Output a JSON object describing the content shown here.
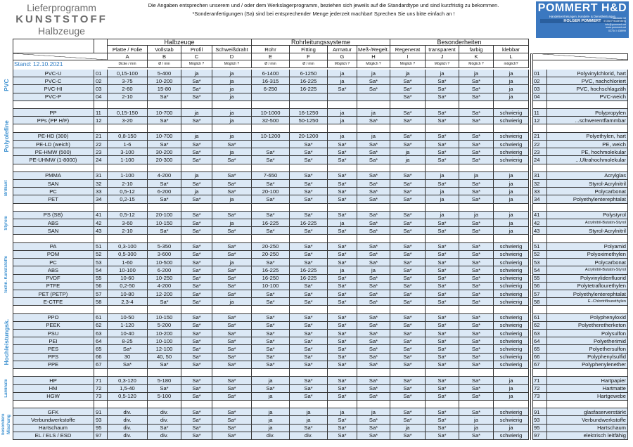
{
  "header": {
    "title_line1": "Lieferprogramm",
    "title_line2": "KUNSTSTOFF",
    "title_line3": "Halbzeuge",
    "note1": "Die Angaben entsprechen unserem und / oder dem Werkslagerprogramm, beziehen sich jeweils auf die Standardtype und sind kurzfristig zu bekommen.",
    "note2": "*Sonderanfertigungen (Sa) sind bei entsprechender Menge jederzeit machbar!  Sprechen Sie uns bitte einfach an !",
    "stand": "Stand: 12.10.2021"
  },
  "logo": {
    "name": "POMMERT H&D",
    "subtitle": "Handelsvertretungen, Handels- & Dienstleistungen",
    "person": "HOLGER POMMERT",
    "address": [
      "Talstraße 18",
      "57258 Freudenberg",
      "info@pommert.net",
      "www.pommert.net",
      "02734 / 438999"
    ]
  },
  "table": {
    "column_groups": [
      {
        "label": "Halbzeuge",
        "columns": [
          {
            "name": "Platte / Folie",
            "letter": "A",
            "unit": "Dicke / mm"
          },
          {
            "name": "Vollstab",
            "letter": "B",
            "unit": "Ø / mm"
          },
          {
            "name": "Profil",
            "letter": "C",
            "unit": "Möglich ?"
          },
          {
            "name": "Schweißdraht",
            "letter": "D",
            "unit": "Möglich ?"
          }
        ]
      },
      {
        "label": "Rohrleitungssysteme",
        "columns": [
          {
            "name": "Rohr",
            "letter": "E",
            "unit": "Ø / mm"
          },
          {
            "name": "Fitting",
            "letter": "F",
            "unit": "Ø / mm"
          },
          {
            "name": "Armatur",
            "letter": "G",
            "unit": "Möglich ?"
          },
          {
            "name": "Meß-/Regelt.",
            "letter": "H",
            "unit": "Möglich ?"
          }
        ]
      },
      {
        "label": "Besonderheiten",
        "columns": [
          {
            "name": "Regenerat",
            "letter": "I",
            "unit": "Möglich ?"
          },
          {
            "name": "transparent",
            "letter": "J",
            "unit": "Möglich ?"
          },
          {
            "name": "farbig",
            "letter": "K",
            "unit": "Möglich ?"
          },
          {
            "name": "klebbar",
            "letter": "L",
            "unit": "möglich?"
          }
        ]
      }
    ],
    "sections": [
      {
        "label": "PVC",
        "blocks": [
          [
            [
              "PVC-U",
              "01",
              "0,15-100",
              "5-400",
              "ja",
              "ja",
              "6-1400",
              "6-1250",
              "ja",
              "ja",
              "ja",
              "ja",
              "ja",
              "ja",
              "01",
              "Polyvinylchlorid, hart"
            ],
            [
              "PVC-C",
              "02",
              "3-75",
              "10-200",
              "Sa*",
              "ja",
              "16-315",
              "16-225",
              "ja",
              "Sa*",
              "Sa*",
              "Sa*",
              "Sa*",
              "ja",
              "02",
              "PVC, nachchloriert"
            ],
            [
              "PVC-HI",
              "03",
              "2-60",
              "15-80",
              "Sa*",
              "ja",
              "6-250",
              "16-225",
              "Sa*",
              "Sa*",
              "Sa*",
              "Sa*",
              "Sa*",
              "ja",
              "03",
              "PVC, hochschlagzäh"
            ],
            [
              "PVC-P",
              "04",
              "2-10",
              "Sa*",
              "Sa*",
              "ja",
              null,
              null,
              null,
              null,
              "Sa*",
              "Sa*",
              "Sa*",
              "ja",
              "04",
              "PVC-weich"
            ]
          ]
        ]
      },
      {
        "label": "Polyolefine",
        "blocks": [
          [
            [
              "PP",
              "11",
              "0,15-150",
              "10-700",
              "ja",
              "ja",
              "10-1000",
              "16-1250",
              "ja",
              "ja",
              "Sa*",
              "Sa*",
              "Sa*",
              "schwierig",
              "11",
              "Polypropylen"
            ],
            [
              "PPs (PP H/F)",
              "12",
              "3-20",
              "Sa*",
              "Sa*",
              "ja",
              "32-500",
              "50-1250",
              "ja",
              "Sa*",
              "Sa*",
              "Sa*",
              "Sa*",
              "schwierig",
              "12",
              "...schwerentflammbar"
            ]
          ],
          [
            [
              "PE-HD (300)",
              "21",
              "0,8-150",
              "10-700",
              "ja",
              "ja",
              "10-1200",
              "20-1200",
              "ja",
              "ja",
              "Sa*",
              "Sa*",
              "Sa*",
              "schwierig",
              "21",
              "Polyethylen, hart"
            ],
            [
              "PE-LD (weich)",
              "22",
              "1-6",
              "Sa*",
              "Sa*",
              "Sa*",
              null,
              "Sa*",
              "Sa*",
              "Sa*",
              "Sa*",
              "Sa*",
              "Sa*",
              "schwierig",
              "22",
              "PE, weich"
            ],
            [
              "PE-HMW (500)",
              "23",
              "3-100",
              "30-200",
              "Sa*",
              "ja",
              "Sa*",
              "Sa*",
              "Sa*",
              "Sa*",
              "ja",
              "Sa*",
              "Sa*",
              "schwierig",
              "23",
              "PE, hochmolekular"
            ],
            [
              "PE-UHMW (1-8000)",
              "24",
              "1-100",
              "20-300",
              "Sa*",
              "Sa*",
              "Sa*",
              "Sa*",
              "Sa*",
              "Sa*",
              "ja",
              "Sa*",
              "Sa*",
              "schwierig",
              "24",
              "...Ultrahochmolekular"
            ]
          ]
        ]
      },
      {
        "label": "Brilliant",
        "blocks": [
          [
            [
              "PMMA",
              "31",
              "1-100",
              "4-200",
              "ja",
              "Sa*",
              "7-650",
              "Sa*",
              "Sa*",
              "Sa*",
              "Sa*",
              "ja",
              "ja",
              "ja",
              "31",
              "Acrylglas"
            ],
            [
              "SAN",
              "32",
              "2-10",
              "Sa*",
              "Sa*",
              "Sa*",
              "Sa*",
              "Sa*",
              "Sa*",
              "Sa*",
              "Sa*",
              "Sa*",
              "Sa*",
              "ja",
              "32",
              "Styrol-Acrylnitril"
            ],
            [
              "PC",
              "33",
              "0,5-12",
              "6-200",
              "ja",
              "Sa*",
              "20-100",
              "Sa*",
              "Sa*",
              "Sa*",
              "Sa*",
              "ja",
              "Sa*",
              "ja",
              "33",
              "Polycarbonat"
            ],
            [
              "PET",
              "34",
              "0,2-15",
              "Sa*",
              "Sa*",
              "ja",
              "Sa*",
              "Sa*",
              "Sa*",
              "Sa*",
              "Sa*",
              "ja",
              "Sa*",
              "ja",
              "34",
              "Polyethylenterephtalat"
            ]
          ]
        ]
      },
      {
        "label": "Styrole",
        "blocks": [
          [
            [
              "PS (SB)",
              "41",
              "0,5-12",
              "20-100",
              "Sa*",
              "Sa*",
              "Sa*",
              "Sa*",
              "Sa*",
              "Sa*",
              "Sa*",
              "ja",
              "ja",
              "ja",
              "41",
              "Polystyrol"
            ],
            [
              "ABS",
              "42",
              "3-60",
              "10-150",
              "Sa*",
              "ja",
              "16-225",
              "16-225",
              "ja",
              "Sa*",
              "Sa*",
              "Sa*",
              "Sa*",
              "ja",
              "42",
              "Acrylnitril-Butatin-Styrol"
            ],
            [
              "SAN",
              "43",
              "2-10",
              "Sa*",
              "Sa*",
              "Sa*",
              "Sa*",
              "Sa*",
              "Sa*",
              "Sa*",
              "Sa*",
              "Sa*",
              "Sa*",
              "ja",
              "43",
              "Styrol-Acrylnitril"
            ]
          ]
        ]
      },
      {
        "label": "techn. Kunststoffe",
        "blocks": [
          [
            [
              "PA",
              "51",
              "0,3-100",
              "5-350",
              "Sa*",
              "Sa*",
              "20-250",
              "Sa*",
              "Sa*",
              "Sa*",
              "Sa*",
              "Sa*",
              "Sa*",
              "schwierig",
              "51",
              "Polyamid"
            ],
            [
              "POM",
              "52",
              "0,5-300",
              "3-600",
              "Sa*",
              "Sa*",
              "20-250",
              "Sa*",
              "Sa*",
              "Sa*",
              "Sa*",
              "Sa*",
              "Sa*",
              "schwierig",
              "52",
              "Polyoximethylen"
            ],
            [
              "PC",
              "53",
              "1-60",
              "10-500",
              "Sa*",
              "ja",
              "Sa*",
              "Sa*",
              "Sa*",
              "Sa*",
              "Sa*",
              "Sa*",
              "Sa*",
              "schwierig",
              "53",
              "Polycarbonat"
            ],
            [
              "ABS",
              "54",
              "10-100",
              "6-200",
              "Sa*",
              "Sa*",
              "16-225",
              "16-225",
              "ja",
              "ja",
              "Sa*",
              "Sa*",
              "Sa*",
              "schwierig",
              "54",
              "Acrylnitril-Butatin-Styrol"
            ],
            [
              "PVDF",
              "55",
              "10-60",
              "10-250",
              "Sa*",
              "Sa*",
              "16-250",
              "16-225",
              "Sa*",
              "Sa*",
              "Sa*",
              "Sa*",
              "Sa*",
              "schwierig",
              "55",
              "Polyvinylidenfluorid"
            ],
            [
              "PTFE",
              "56",
              "0,2-50",
              "4-200",
              "Sa*",
              "Sa*",
              "10-100",
              "Sa*",
              "Sa*",
              "Sa*",
              "Sa*",
              "Sa*",
              "Sa*",
              "schwierig",
              "56",
              "Polytetraflourethylen"
            ],
            [
              "PET (PETP)",
              "57",
              "10-80",
              "12-200",
              "Sa*",
              "Sa*",
              "Sa*",
              "Sa*",
              "Sa*",
              "Sa*",
              "Sa*",
              "Sa*",
              "Sa*",
              "schwierig",
              "57",
              "Polyethylenterephtalat"
            ],
            [
              "E-CTFE",
              "58",
              "2,3-4",
              "Sa*",
              "Sa*",
              "ja",
              "Sa*",
              "Sa*",
              "Sa*",
              "Sa*",
              "Sa*",
              "Sa*",
              "Sa*",
              "schwierig",
              "58",
              "E.-Chlortriflourethylen"
            ]
          ]
        ]
      },
      {
        "label": "Hochleistungsk.",
        "blocks": [
          [
            [
              "PPO",
              "61",
              "10-50",
              "10-150",
              "Sa*",
              "Sa*",
              "Sa*",
              "Sa*",
              "Sa*",
              "Sa*",
              "Sa*",
              "Sa*",
              "Sa*",
              "schwierig",
              "61",
              "Polyphenyloxid"
            ],
            [
              "PEEK",
              "62",
              "1-120",
              "5-200",
              "Sa*",
              "Sa*",
              "Sa*",
              "Sa*",
              "Sa*",
              "Sa*",
              "Sa*",
              "Sa*",
              "Sa*",
              "schwierig",
              "62",
              "Polyetheretherketon"
            ],
            [
              "PSU",
              "63",
              "10-40",
              "10-200",
              "Sa*",
              "Sa*",
              "Sa*",
              "Sa*",
              "Sa*",
              "Sa*",
              "Sa*",
              "Sa*",
              "Sa*",
              "schwierig",
              "63",
              "Polysulfon"
            ],
            [
              "PEI",
              "64",
              "8-25",
              "10-100",
              "Sa*",
              "Sa*",
              "Sa*",
              "Sa*",
              "Sa*",
              "Sa*",
              "Sa*",
              "Sa*",
              "Sa*",
              "schwierig",
              "64",
              "Polyetherimid"
            ],
            [
              "PES",
              "65",
              "Sa*",
              "12-100",
              "Sa*",
              "Sa*",
              "Sa*",
              "Sa*",
              "Sa*",
              "Sa*",
              "Sa*",
              "Sa*",
              "Sa*",
              "schwierig",
              "65",
              "Polyethersulfon"
            ],
            [
              "PPS",
              "66",
              "30",
              "40, 50",
              "Sa*",
              "Sa*",
              "Sa*",
              "Sa*",
              "Sa*",
              "Sa*",
              "Sa*",
              "Sa*",
              "Sa*",
              "schwierig",
              "66",
              "Polyphenylsulfid"
            ],
            [
              "PPE",
              "67",
              "Sa*",
              "Sa*",
              "Sa*",
              "Sa*",
              "Sa*",
              "Sa*",
              "Sa*",
              "Sa*",
              "Sa*",
              "Sa*",
              "Sa*",
              "schwierig",
              "67",
              "Polyphenylenether"
            ]
          ]
        ]
      },
      {
        "label": "Laminate",
        "blocks": [
          [
            [
              "HP",
              "71",
              "0,3-120",
              "5-180",
              "Sa*",
              "Sa*",
              "ja",
              "Sa*",
              "Sa*",
              "Sa*",
              "Sa*",
              "Sa*",
              "Sa*",
              "ja",
              "71",
              "Hartpapier"
            ],
            [
              "HM",
              "72",
              "1,5-40",
              "Sa*",
              "Sa*",
              "Sa*",
              "Sa*",
              "Sa*",
              "Sa*",
              "Sa*",
              "Sa*",
              "Sa*",
              "Sa*",
              "ja",
              "72",
              "Hartmatte"
            ],
            [
              "HGW",
              "73",
              "0,5-120",
              "5-100",
              "Sa*",
              "Sa*",
              "ja",
              "Sa*",
              "Sa*",
              "Sa*",
              "Sa*",
              "Sa*",
              "Sa*",
              "ja",
              "73",
              "Hartgewebe"
            ]
          ]
        ]
      },
      {
        "label": "besondere Mischung",
        "blocks": [
          [
            [
              "GFK",
              "91",
              "div.",
              "div.",
              "Sa*",
              "Sa*",
              "ja",
              "ja",
              "ja",
              "ja",
              "Sa*",
              "Sa*",
              "Sa*",
              "schwierig",
              "91",
              "glasfaserverstärkt"
            ],
            [
              "Verbundwerkstoffe",
              "93",
              "div.",
              "div.",
              "Sa*",
              "Sa*",
              "ja",
              "ja",
              "Sa*",
              "Sa*",
              "Sa*",
              "Sa*",
              "ja",
              "schwierig",
              "93",
              "Verbundwerkstoffe"
            ],
            [
              "Hartschaum",
              "95",
              "div.",
              "Sa*",
              "Sa*",
              "Sa*",
              "ja",
              "Sa*",
              "Sa*",
              "Sa*",
              "ja",
              "Sa*",
              "ja",
              "ja",
              "95",
              "Hartschaum"
            ],
            [
              "EL / ELS / ESD",
              "97",
              "div.",
              "div.",
              "Sa*",
              "Sa*",
              "div.",
              "div.",
              "Sa*",
              "Sa*",
              "Sa*",
              "Sa*",
              "Sa*",
              "schwierig",
              "97",
              "elektrisch leitfähig"
            ]
          ]
        ]
      }
    ]
  }
}
